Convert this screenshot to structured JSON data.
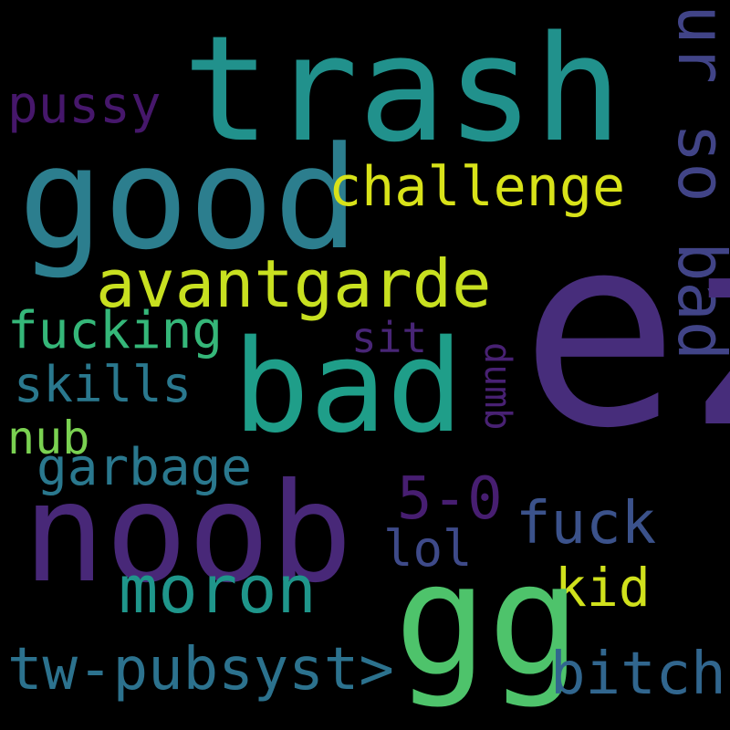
{
  "cloud": {
    "words": {
      "trash": {
        "text": "trash",
        "color": "#21918c"
      },
      "good": {
        "text": "good",
        "color": "#2c7e8e"
      },
      "ez": {
        "text": "ez",
        "color": "#472d7b"
      },
      "ur_so_bad": {
        "text": "ur so bad",
        "color": "#414487"
      },
      "pussy": {
        "text": "pussy",
        "color": "#46176b"
      },
      "challenge": {
        "text": "challenge",
        "color": "#d8e219"
      },
      "avantgarde": {
        "text": "avantgarde",
        "color": "#c8e020"
      },
      "fucking": {
        "text": "fucking",
        "color": "#35b779"
      },
      "sit": {
        "text": "sit",
        "color": "#482576"
      },
      "bad": {
        "text": "bad",
        "color": "#1f9e89"
      },
      "skills": {
        "text": "skills",
        "color": "#2a788e"
      },
      "dumb": {
        "text": "dumb",
        "color": "#482173"
      },
      "nub": {
        "text": "nub",
        "color": "#7ad151"
      },
      "garbage": {
        "text": "garbage",
        "color": "#2a788e"
      },
      "five_o": {
        "text": "5-0",
        "color": "#471e71"
      },
      "noob": {
        "text": "noob",
        "color": "#482878"
      },
      "fuck": {
        "text": "fuck",
        "color": "#3b528b"
      },
      "lol": {
        "text": "lol",
        "color": "#3e4a89"
      },
      "moron": {
        "text": "moron",
        "color": "#1f968b"
      },
      "kid": {
        "text": "kid",
        "color": "#d0e11c"
      },
      "gg": {
        "text": "gg",
        "color": "#4ec36b"
      },
      "tw": {
        "text": "tw-pubsyst>",
        "color": "#2c728e"
      },
      "bitch": {
        "text": "bitch",
        "color": "#31668e"
      }
    }
  }
}
